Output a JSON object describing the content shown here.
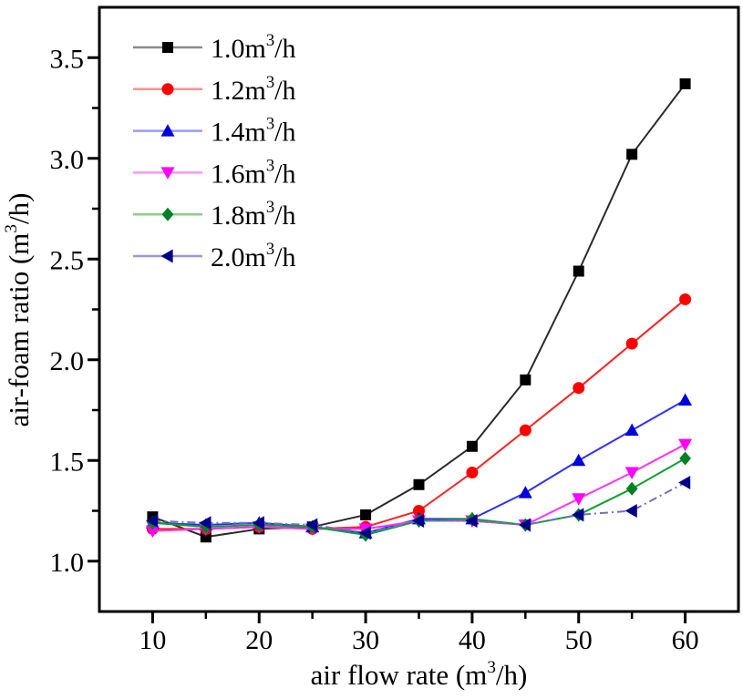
{
  "figure": {
    "background": "#ffffff",
    "text_color": "#000000"
  },
  "chart_data": {
    "type": "line",
    "title": "",
    "xlabel": {
      "prefix": "air flow rate (m",
      "sup": "3",
      "suffix": "/h)",
      "full": "air flow rate (m3/h)"
    },
    "ylabel": {
      "prefix": "air-foam ratio (m",
      "sup": "3",
      "suffix": "/h)",
      "full": "air-foam ratio (m3/h)"
    },
    "x": [
      10,
      15,
      20,
      25,
      30,
      35,
      40,
      45,
      50,
      55,
      60
    ],
    "xlim": [
      5,
      65
    ],
    "ylim": [
      0.75,
      3.75
    ],
    "x_major_ticks": [
      10,
      20,
      30,
      40,
      50,
      60
    ],
    "x_major_tick_labels": [
      "10",
      "20",
      "30",
      "40",
      "50",
      "60"
    ],
    "x_minor_ticks": [
      15,
      25,
      35,
      45,
      55
    ],
    "y_major_ticks": [
      1.0,
      1.5,
      2.0,
      2.5,
      3.0,
      3.5
    ],
    "y_major_tick_labels": [
      "1.0",
      "1.5",
      "2.0",
      "2.5",
      "3.0",
      "3.5"
    ],
    "y_minor_ticks": [
      1.25,
      1.75,
      2.25,
      2.75,
      3.25
    ],
    "grid": false,
    "legend_position": "top-left-inside",
    "series": [
      {
        "label": "1.0m3/h",
        "label_prefix": "1.0m",
        "label_sup": "3",
        "label_suffix": "/h",
        "marker": "square",
        "marker_color": "#000000",
        "line_color": "#2b2b2b",
        "legend_line_color": "#8a8a8a",
        "dash": "",
        "values": [
          1.22,
          1.12,
          1.16,
          1.17,
          1.23,
          1.38,
          1.57,
          1.9,
          2.44,
          3.02,
          3.37
        ]
      },
      {
        "label": "1.2m3/h",
        "label_prefix": "1.2m",
        "label_sup": "3",
        "label_suffix": "/h",
        "marker": "circle",
        "marker_color": "#ff0000",
        "line_color": "#ff2020",
        "legend_line_color": "#ff9090",
        "dash": "",
        "values": [
          1.16,
          1.16,
          1.17,
          1.16,
          1.17,
          1.25,
          1.44,
          1.65,
          1.86,
          2.08,
          2.3
        ]
      },
      {
        "label": "1.4m3/h",
        "label_prefix": "1.4m",
        "label_sup": "3",
        "label_suffix": "/h",
        "marker": "triangle-up",
        "marker_color": "#0000dd",
        "line_color": "#2f2fff",
        "legend_line_color": "#9a9aff",
        "dash": "",
        "values": [
          1.19,
          1.18,
          1.19,
          1.17,
          1.14,
          1.21,
          1.21,
          1.34,
          1.5,
          1.65,
          1.8
        ]
      },
      {
        "label": "1.6m3/h",
        "label_prefix": "1.6m",
        "label_sup": "3",
        "label_suffix": "/h",
        "marker": "triangle-down",
        "marker_color": "#ff00ff",
        "line_color": "#ff30ff",
        "legend_line_color": "#ff94ff",
        "dash": "",
        "values": [
          1.15,
          1.16,
          1.17,
          1.16,
          1.16,
          1.2,
          1.2,
          1.18,
          1.31,
          1.44,
          1.58
        ]
      },
      {
        "label": "1.8m3/h",
        "label_prefix": "1.8m",
        "label_sup": "3",
        "label_suffix": "/h",
        "marker": "diamond",
        "marker_color": "#008024",
        "line_color": "#10a030",
        "legend_line_color": "#8ad08a",
        "dash": "",
        "values": [
          1.19,
          1.17,
          1.18,
          1.17,
          1.13,
          1.2,
          1.21,
          1.18,
          1.23,
          1.36,
          1.51
        ]
      },
      {
        "label": "2.0m3/h",
        "label_prefix": "2.0m",
        "label_sup": "3",
        "label_suffix": "/h",
        "marker": "triangle-left",
        "marker_color": "#00008b",
        "line_color": "#7070bd",
        "legend_line_color": "#9a9ad0",
        "dash": "9 4 2 4",
        "values": [
          1.2,
          1.19,
          1.19,
          1.18,
          1.14,
          1.2,
          1.2,
          1.18,
          1.23,
          1.25,
          1.39
        ]
      }
    ]
  }
}
